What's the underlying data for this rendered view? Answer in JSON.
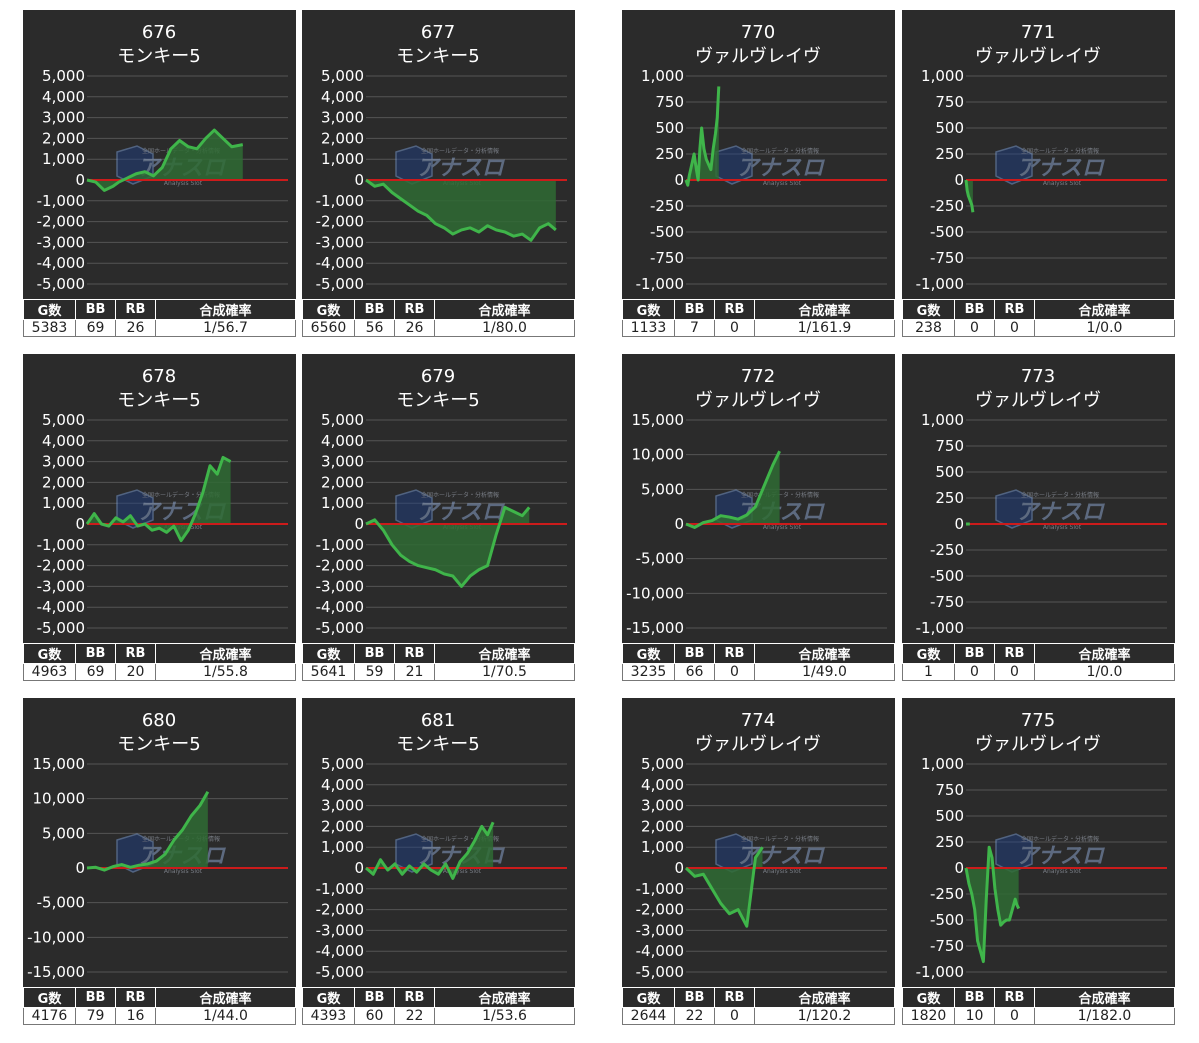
{
  "colors": {
    "panel_bg": "#2b2b2b",
    "grid": "#555555",
    "zero_line": "#cc1b1b",
    "series_line": "#3fb54a",
    "series_fill": "#2f6b34",
    "text": "#ffffff"
  },
  "stats_headers": {
    "g": "G数",
    "bb": "BB",
    "rb": "RB",
    "rate": "合成確率"
  },
  "watermark": {
    "icon": "analysis-slot-logo",
    "brand": "アナスロ",
    "tagline": "Analysis Slot",
    "header": "全国ホールデータ・分析情報"
  },
  "machines": [
    {
      "number": "676",
      "name": "モンキー5",
      "g": "5383",
      "bb": "69",
      "rb": "26",
      "rate": "1/56.7"
    },
    {
      "number": "677",
      "name": "モンキー5",
      "g": "6560",
      "bb": "56",
      "rb": "26",
      "rate": "1/80.0"
    },
    {
      "number": "770",
      "name": "ヴァルヴレイヴ",
      "g": "1133",
      "bb": "7",
      "rb": "0",
      "rate": "1/161.9"
    },
    {
      "number": "771",
      "name": "ヴァルヴレイヴ",
      "g": "238",
      "bb": "0",
      "rb": "0",
      "rate": "1/0.0"
    },
    {
      "number": "678",
      "name": "モンキー5",
      "g": "4963",
      "bb": "69",
      "rb": "20",
      "rate": "1/55.8"
    },
    {
      "number": "679",
      "name": "モンキー5",
      "g": "5641",
      "bb": "59",
      "rb": "21",
      "rate": "1/70.5"
    },
    {
      "number": "772",
      "name": "ヴァルヴレイヴ",
      "g": "3235",
      "bb": "66",
      "rb": "0",
      "rate": "1/49.0"
    },
    {
      "number": "773",
      "name": "ヴァルヴレイヴ",
      "g": "1",
      "bb": "0",
      "rb": "0",
      "rate": "1/0.0"
    },
    {
      "number": "680",
      "name": "モンキー5",
      "g": "4176",
      "bb": "79",
      "rb": "16",
      "rate": "1/44.0"
    },
    {
      "number": "681",
      "name": "モンキー5",
      "g": "4393",
      "bb": "60",
      "rb": "22",
      "rate": "1/53.6"
    },
    {
      "number": "774",
      "name": "ヴァルヴレイヴ",
      "g": "2644",
      "bb": "22",
      "rb": "0",
      "rate": "1/120.2"
    },
    {
      "number": "775",
      "name": "ヴァルヴレイヴ",
      "g": "1820",
      "bb": "10",
      "rb": "0",
      "rate": "1/182.0"
    }
  ],
  "chart_data": [
    {
      "type": "area",
      "title": "676 モンキー5",
      "ylim": [
        -5000,
        5000
      ],
      "yticks": [
        "5,000",
        "4,000",
        "3,000",
        "2,000",
        "1,000",
        "0",
        "-1,000",
        "-2,000",
        "-3,000",
        "-4,000",
        "-5,000"
      ],
      "x": [
        0,
        300,
        600,
        900,
        1100,
        1400,
        1700,
        2000,
        2300,
        2600,
        2900,
        3200,
        3500,
        3800,
        4100,
        4400,
        4700,
        5000,
        5383
      ],
      "values": [
        0,
        -100,
        -500,
        -300,
        -100,
        100,
        300,
        400,
        200,
        600,
        1500,
        1900,
        1600,
        1500,
        2000,
        2400,
        2000,
        1600,
        1700
      ]
    },
    {
      "type": "area",
      "title": "677 モンキー5",
      "ylim": [
        -5000,
        5000
      ],
      "yticks": [
        "5,000",
        "4,000",
        "3,000",
        "2,000",
        "1,000",
        "0",
        "-1,000",
        "-2,000",
        "-3,000",
        "-4,000",
        "-5,000"
      ],
      "x": [
        0,
        300,
        600,
        900,
        1200,
        1500,
        1800,
        2100,
        2400,
        2700,
        3000,
        3300,
        3600,
        3900,
        4200,
        4500,
        4800,
        5100,
        5400,
        5700,
        6000,
        6300,
        6560
      ],
      "values": [
        0,
        -300,
        -200,
        -600,
        -900,
        -1200,
        -1500,
        -1700,
        -2100,
        -2300,
        -2600,
        -2400,
        -2300,
        -2500,
        -2200,
        -2400,
        -2500,
        -2700,
        -2600,
        -2900,
        -2300,
        -2100,
        -2400
      ]
    },
    {
      "type": "area",
      "title": "770 ヴァルヴレイヴ",
      "ylim": [
        -1000,
        1000
      ],
      "yticks": [
        "1,000",
        "750",
        "500",
        "250",
        "0",
        "-250",
        "-500",
        "-750",
        "-1,000"
      ],
      "x": [
        0,
        60,
        120,
        200,
        280,
        360,
        420,
        480,
        540,
        620,
        700,
        780,
        860,
        940,
        1020,
        1080,
        1133
      ],
      "values": [
        0,
        -50,
        50,
        150,
        250,
        100,
        0,
        300,
        500,
        300,
        200,
        150,
        100,
        300,
        450,
        600,
        900
      ]
    },
    {
      "type": "area",
      "title": "771 ヴァルヴレイヴ",
      "ylim": [
        -1000,
        1000
      ],
      "yticks": [
        "1,000",
        "750",
        "500",
        "250",
        "0",
        "-250",
        "-500",
        "-750",
        "-1,000"
      ],
      "x": [
        0,
        40,
        80,
        120,
        160,
        200,
        238
      ],
      "values": [
        0,
        -100,
        -150,
        -180,
        -210,
        -240,
        -310
      ]
    },
    {
      "type": "area",
      "title": "678 モンキー5",
      "ylim": [
        -5000,
        5000
      ],
      "yticks": [
        "5,000",
        "4,000",
        "3,000",
        "2,000",
        "1,000",
        "0",
        "-1,000",
        "-2,000",
        "-3,000",
        "-4,000",
        "-5,000"
      ],
      "x": [
        0,
        250,
        500,
        750,
        1000,
        1250,
        1500,
        1750,
        2000,
        2250,
        2500,
        2750,
        3000,
        3250,
        3500,
        3750,
        4000,
        4250,
        4500,
        4700,
        4963
      ],
      "values": [
        0,
        500,
        0,
        -100,
        300,
        100,
        400,
        -100,
        0,
        -300,
        -200,
        -400,
        -100,
        -800,
        -300,
        500,
        1500,
        2800,
        2400,
        3200,
        3000
      ]
    },
    {
      "type": "area",
      "title": "679 モンキー5",
      "ylim": [
        -5000,
        5000
      ],
      "yticks": [
        "5,000",
        "4,000",
        "3,000",
        "2,000",
        "1,000",
        "0",
        "-1,000",
        "-2,000",
        "-3,000",
        "-4,000",
        "-5,000"
      ],
      "x": [
        0,
        300,
        600,
        900,
        1200,
        1500,
        1800,
        2100,
        2400,
        2700,
        3000,
        3300,
        3600,
        3900,
        4200,
        4500,
        4800,
        5100,
        5400,
        5641
      ],
      "values": [
        0,
        200,
        -300,
        -1000,
        -1500,
        -1800,
        -2000,
        -2100,
        -2200,
        -2400,
        -2500,
        -3000,
        -2500,
        -2200,
        -2000,
        -500,
        800,
        600,
        400,
        800
      ]
    },
    {
      "type": "area",
      "title": "772 ヴァルヴレイヴ",
      "ylim": [
        -15000,
        15000
      ],
      "yticks": [
        "15,000",
        "10,000",
        "5,000",
        "0",
        "-5,000",
        "-10,000",
        "-15,000"
      ],
      "x": [
        0,
        300,
        600,
        900,
        1200,
        1500,
        1800,
        2100,
        2400,
        2700,
        3000,
        3235
      ],
      "values": [
        0,
        -500,
        200,
        500,
        1200,
        1000,
        700,
        1300,
        2500,
        5500,
        8500,
        10500
      ]
    },
    {
      "type": "area",
      "title": "773 ヴァルヴレイヴ",
      "ylim": [
        -1000,
        1000
      ],
      "yticks": [
        "1,000",
        "750",
        "500",
        "250",
        "0",
        "-250",
        "-500",
        "-750",
        "-1,000"
      ],
      "x": [
        0,
        1
      ],
      "values": [
        0,
        0
      ]
    },
    {
      "type": "area",
      "title": "680 モンキー5",
      "ylim": [
        -15000,
        15000
      ],
      "yticks": [
        "15,000",
        "10,000",
        "5,000",
        "0",
        "-5,000",
        "-10,000",
        "-15,000"
      ],
      "x": [
        0,
        300,
        600,
        900,
        1200,
        1500,
        1800,
        2100,
        2400,
        2700,
        3000,
        3300,
        3600,
        3900,
        4176
      ],
      "values": [
        0,
        100,
        -300,
        200,
        500,
        100,
        400,
        600,
        1000,
        2000,
        4000,
        5500,
        7500,
        9000,
        11000
      ]
    },
    {
      "type": "area",
      "title": "681 モンキー5",
      "ylim": [
        -5000,
        5000
      ],
      "yticks": [
        "5,000",
        "4,000",
        "3,000",
        "2,000",
        "1,000",
        "0",
        "-1,000",
        "-2,000",
        "-3,000",
        "-4,000",
        "-5,000"
      ],
      "x": [
        0,
        250,
        500,
        750,
        1000,
        1250,
        1500,
        1750,
        2000,
        2250,
        2500,
        2750,
        3000,
        3250,
        3500,
        3750,
        4000,
        4200,
        4393
      ],
      "values": [
        0,
        -300,
        400,
        -100,
        200,
        -300,
        100,
        -200,
        200,
        -100,
        -300,
        200,
        -500,
        300,
        700,
        1300,
        2000,
        1600,
        2200
      ]
    },
    {
      "type": "area",
      "title": "774 ヴァルヴレイヴ",
      "ylim": [
        -5000,
        5000
      ],
      "yticks": [
        "5,000",
        "4,000",
        "3,000",
        "2,000",
        "1,000",
        "0",
        "-1,000",
        "-2,000",
        "-3,000",
        "-4,000",
        "-5,000"
      ],
      "x": [
        0,
        300,
        600,
        900,
        1200,
        1500,
        1800,
        2100,
        2400,
        2644
      ],
      "values": [
        0,
        -400,
        -300,
        -1000,
        -1700,
        -2200,
        -2000,
        -2800,
        500,
        1000
      ]
    },
    {
      "type": "area",
      "title": "775 ヴァルヴレイヴ",
      "ylim": [
        -1000,
        1000
      ],
      "yticks": [
        "1,000",
        "750",
        "500",
        "250",
        "0",
        "-250",
        "-500",
        "-750",
        "-1,000"
      ],
      "x": [
        0,
        100,
        200,
        300,
        400,
        500,
        600,
        700,
        800,
        900,
        1000,
        1100,
        1200,
        1300,
        1400,
        1500,
        1600,
        1700,
        1750,
        1820
      ],
      "values": [
        0,
        -150,
        -250,
        -400,
        -700,
        -800,
        -900,
        -300,
        200,
        100,
        -200,
        -400,
        -550,
        -520,
        -500,
        -500,
        -400,
        -300,
        -350,
        -390
      ]
    }
  ]
}
